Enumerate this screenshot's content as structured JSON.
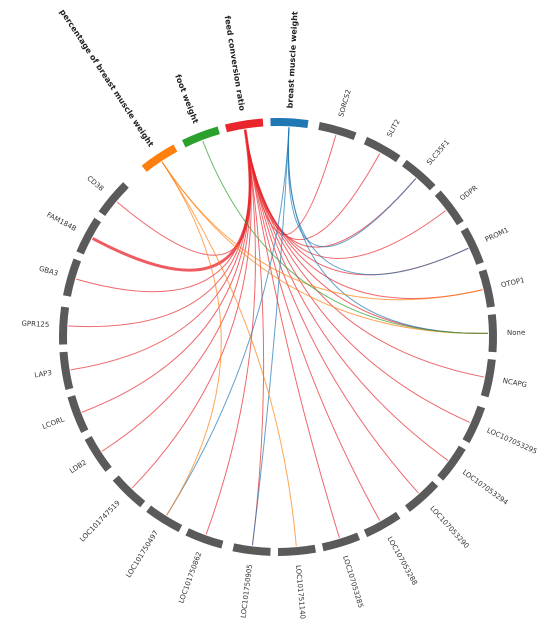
{
  "chart_data": {
    "type": "chord",
    "title": "",
    "trait_colors": {
      "percentage of breast muscle weight": "#ff7f0e",
      "foot weight": "#2ca02c",
      "feed conversion ratio": "#e8262c",
      "breast muscle weight": "#1f77b4"
    },
    "segment_color": "#5a5a5a",
    "traits": [
      {
        "name": "percentage of breast muscle weight",
        "angle": 236.5
      },
      {
        "name": "foot weight",
        "angle": 249
      },
      {
        "name": "feed conversion ratio",
        "angle": 261
      },
      {
        "name": "breast muscle weight",
        "angle": 273
      }
    ],
    "genes": [
      {
        "name": "SORCS2",
        "angle": 286
      },
      {
        "name": "SLIT2",
        "angle": 299
      },
      {
        "name": "SLC35F1",
        "angle": 311
      },
      {
        "name": "ODPR",
        "angle": 323
      },
      {
        "name": "PROM1",
        "angle": 335
      },
      {
        "name": "OTOP1",
        "angle": 347
      },
      {
        "name": "None",
        "angle": 359
      },
      {
        "name": "NCAPG",
        "angle": 11
      },
      {
        "name": "LOC107053295",
        "angle": 24
      },
      {
        "name": "LOC107053294",
        "angle": 36
      },
      {
        "name": "LOC107053290",
        "angle": 48
      },
      {
        "name": "LOC107053288",
        "angle": 61
      },
      {
        "name": "LOC107053285",
        "angle": 73
      },
      {
        "name": "LOC101751140",
        "angle": 85
      },
      {
        "name": "LOC101750905",
        "angle": 97
      },
      {
        "name": "LOC101750862",
        "angle": 110
      },
      {
        "name": "LOC101750497",
        "angle": 122
      },
      {
        "name": "LOC101747519",
        "angle": 134
      },
      {
        "name": "LDB2",
        "angle": 147
      },
      {
        "name": "LCORL",
        "angle": 159
      },
      {
        "name": "LAP3",
        "angle": 171
      },
      {
        "name": "GPR125",
        "angle": 183
      },
      {
        "name": "GBA3",
        "angle": 196
      },
      {
        "name": "FAM184B",
        "angle": 208
      },
      {
        "name": "CD38",
        "angle": 220
      }
    ],
    "links": [
      {
        "trait": "feed conversion ratio",
        "gene": "SORCS2"
      },
      {
        "trait": "feed conversion ratio",
        "gene": "SLIT2"
      },
      {
        "trait": "feed conversion ratio",
        "gene": "SLC35F1"
      },
      {
        "trait": "feed conversion ratio",
        "gene": "ODPR"
      },
      {
        "trait": "feed conversion ratio",
        "gene": "PROM1"
      },
      {
        "trait": "feed conversion ratio",
        "gene": "OTOP1"
      },
      {
        "trait": "feed conversion ratio",
        "gene": "None"
      },
      {
        "trait": "feed conversion ratio",
        "gene": "NCAPG"
      },
      {
        "trait": "feed conversion ratio",
        "gene": "LOC107053295"
      },
      {
        "trait": "feed conversion ratio",
        "gene": "LOC107053294"
      },
      {
        "trait": "feed conversion ratio",
        "gene": "LOC107053290"
      },
      {
        "trait": "feed conversion ratio",
        "gene": "LOC107053288"
      },
      {
        "trait": "feed conversion ratio",
        "gene": "LOC107053285"
      },
      {
        "trait": "feed conversion ratio",
        "gene": "LOC101750905"
      },
      {
        "trait": "feed conversion ratio",
        "gene": "LOC101750862"
      },
      {
        "trait": "feed conversion ratio",
        "gene": "LOC101747519"
      },
      {
        "trait": "feed conversion ratio",
        "gene": "LDB2"
      },
      {
        "trait": "feed conversion ratio",
        "gene": "LCORL"
      },
      {
        "trait": "feed conversion ratio",
        "gene": "LAP3"
      },
      {
        "trait": "feed conversion ratio",
        "gene": "GPR125"
      },
      {
        "trait": "feed conversion ratio",
        "gene": "GBA3"
      },
      {
        "trait": "feed conversion ratio",
        "gene": "FAM184B",
        "weight": 3
      },
      {
        "trait": "feed conversion ratio",
        "gene": "CD38"
      },
      {
        "trait": "breast muscle weight",
        "gene": "SLC35F1"
      },
      {
        "trait": "breast muscle weight",
        "gene": "PROM1"
      },
      {
        "trait": "breast muscle weight",
        "gene": "None"
      },
      {
        "trait": "breast muscle weight",
        "gene": "LOC101750905"
      },
      {
        "trait": "breast muscle weight",
        "gene": "LOC101750497"
      },
      {
        "trait": "percentage of breast muscle weight",
        "gene": "LOC101750497"
      },
      {
        "trait": "percentage of breast muscle weight",
        "gene": "LOC101751140"
      },
      {
        "trait": "percentage of breast muscle weight",
        "gene": "OTOP1"
      },
      {
        "trait": "percentage of breast muscle weight",
        "gene": "None"
      },
      {
        "trait": "foot weight",
        "gene": "None"
      }
    ]
  }
}
